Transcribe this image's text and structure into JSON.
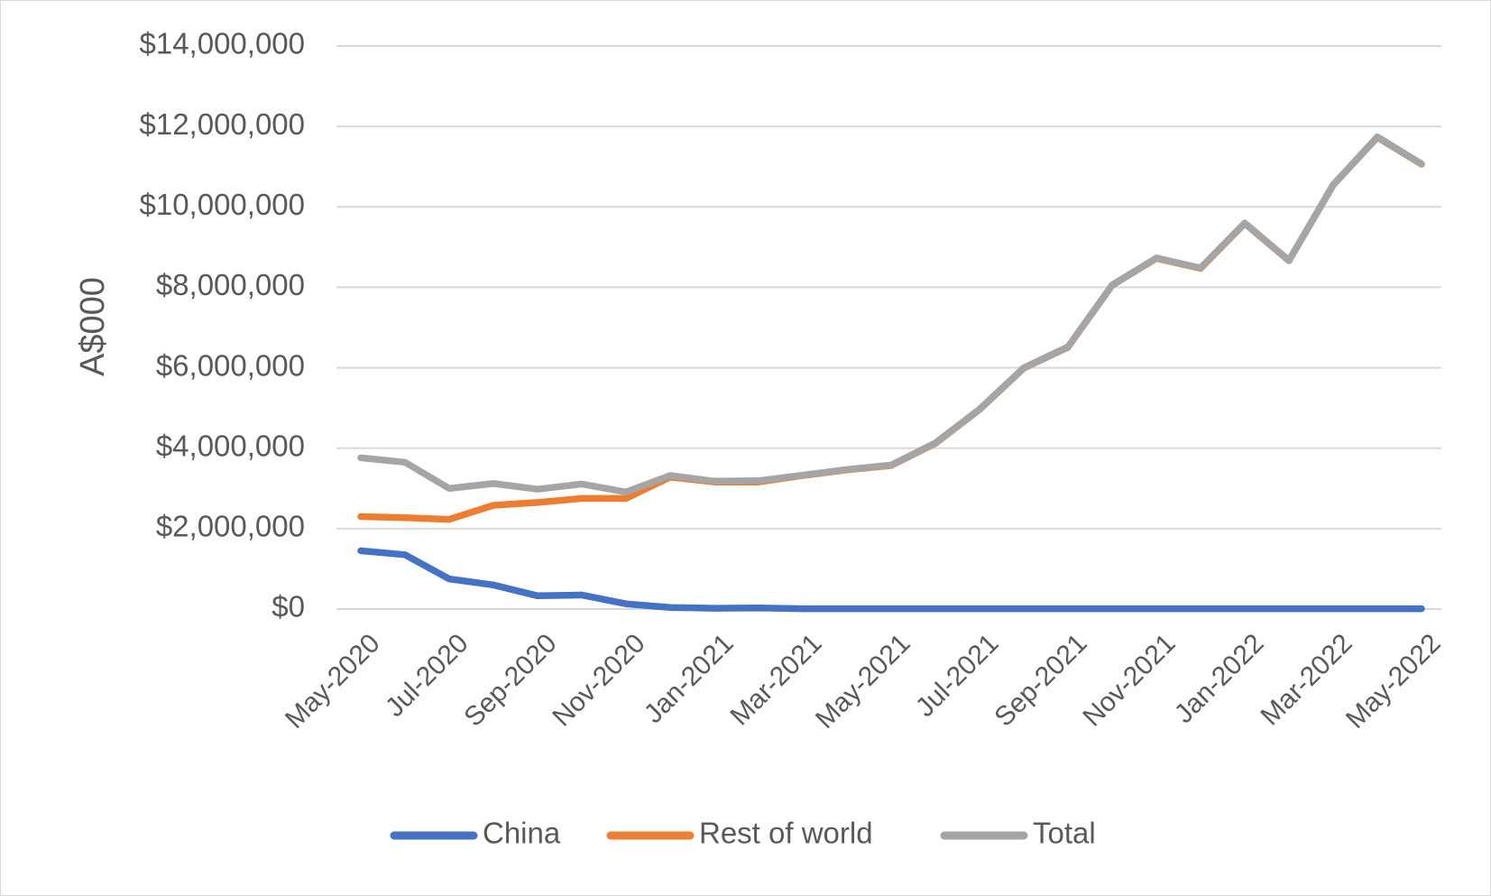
{
  "chart_data": {
    "type": "line",
    "title": "",
    "xlabel": "",
    "ylabel": "A$000",
    "ylim": [
      0,
      14000000
    ],
    "yticks": [
      0,
      2000000,
      4000000,
      6000000,
      8000000,
      10000000,
      12000000,
      14000000
    ],
    "ytick_labels": [
      "$0",
      "$2,000,000",
      "$4,000,000",
      "$6,000,000",
      "$8,000,000",
      "$10,000,000",
      "$12,000,000",
      "$14,000,000"
    ],
    "categories": [
      "May-2020",
      "Jun-2020",
      "Jul-2020",
      "Aug-2020",
      "Sep-2020",
      "Oct-2020",
      "Nov-2020",
      "Dec-2020",
      "Jan-2021",
      "Feb-2021",
      "Mar-2021",
      "Apr-2021",
      "May-2021",
      "Jun-2021",
      "Jul-2021",
      "Aug-2021",
      "Sep-2021",
      "Oct-2021",
      "Nov-2021",
      "Dec-2021",
      "Jan-2022",
      "Feb-2022",
      "Mar-2022",
      "Apr-2022",
      "May-2022"
    ],
    "xtick_labels": [
      "May-2020",
      "Jul-2020",
      "Sep-2020",
      "Nov-2020",
      "Jan-2021",
      "Mar-2021",
      "May-2021",
      "Jul-2021",
      "Sep-2021",
      "Nov-2021",
      "Jan-2022",
      "Mar-2022",
      "May-2022"
    ],
    "grid": true,
    "legend_position": "bottom",
    "series": [
      {
        "name": "China",
        "color": "#4472c4",
        "values": [
          1450000,
          1350000,
          750000,
          600000,
          330000,
          350000,
          130000,
          40000,
          20000,
          30000,
          10000,
          10000,
          10000,
          10000,
          10000,
          10000,
          10000,
          10000,
          10000,
          10000,
          10000,
          10000,
          10000,
          10000,
          10000
        ]
      },
      {
        "name": "Rest of world",
        "color": "#ed7d31",
        "values": [
          2300000,
          2270000,
          2230000,
          2580000,
          2650000,
          2750000,
          2750000,
          3280000,
          3160000,
          3160000,
          3320000,
          3460000,
          3570000,
          4120000,
          4960000,
          5990000,
          6510000,
          8050000,
          8720000,
          8470000,
          9590000,
          8660000,
          10540000,
          11730000,
          11060000
        ]
      },
      {
        "name": "Total",
        "color": "#a5a5a5",
        "values": [
          3760000,
          3650000,
          3000000,
          3120000,
          2980000,
          3110000,
          2910000,
          3320000,
          3180000,
          3190000,
          3330000,
          3470000,
          3580000,
          4130000,
          4970000,
          6000000,
          6520000,
          8060000,
          8730000,
          8480000,
          9600000,
          8670000,
          10550000,
          11740000,
          11070000
        ]
      }
    ]
  }
}
